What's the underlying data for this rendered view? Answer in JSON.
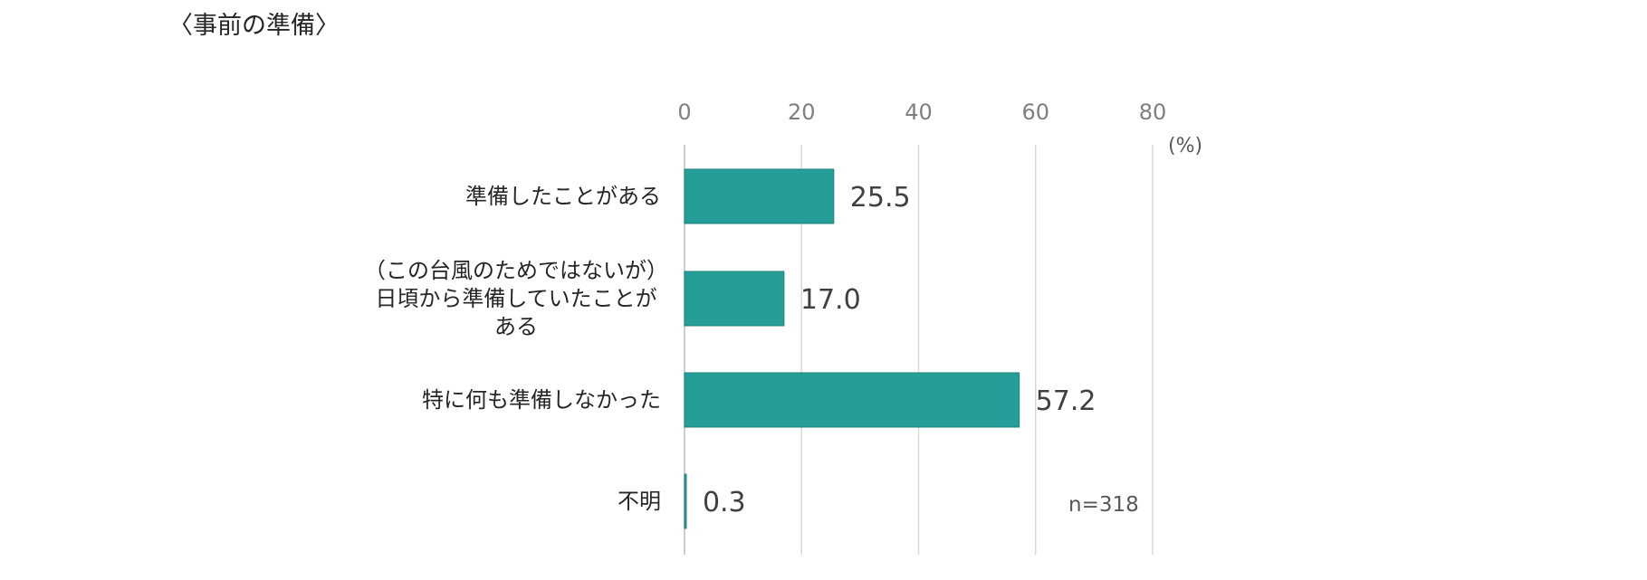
{
  "title": "〈事前の準備〉",
  "chart_data": {
    "type": "bar",
    "orientation": "horizontal",
    "categories": [
      [
        "準備したことがある"
      ],
      [
        "（この台風のためではないが）",
        "日頃から準備していたことが",
        "ある"
      ],
      [
        "特に何も準備しなかった"
      ],
      [
        "不明"
      ]
    ],
    "values": [
      25.5,
      17.0,
      57.2,
      0.3
    ],
    "value_labels": [
      "25.5",
      "17.0",
      "57.2",
      "0.3"
    ],
    "xlim": [
      0,
      80
    ],
    "xticks": [
      "0",
      "20",
      "40",
      "60",
      "80"
    ],
    "unit_label": "(%)",
    "annotation": "n=318",
    "bar_color": "#259e99",
    "grid": true,
    "axis_position": "top"
  }
}
